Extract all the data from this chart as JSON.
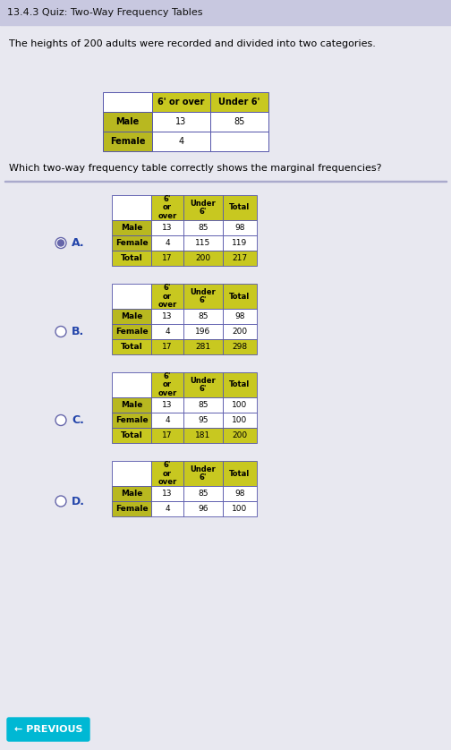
{
  "title": "13.4.3 Quiz: Two-Way Frequency Tables",
  "subtitle": "The heights of 200 adults were recorded and divided into two categories.",
  "question": "Which two-way frequency table correctly shows the marginal frequencies?",
  "title_bar_color": "#c8c8e0",
  "content_bg": "#d8d8e8",
  "white_area_color": "#e8e8f0",
  "cell_white": "#ffffff",
  "header_yellow": "#c8c820",
  "row_yellow": "#b8b820",
  "total_yellow": "#c8c820",
  "outline_color": "#5555aa",
  "intro_table": {
    "headers": [
      "6' or over",
      "Under 6'"
    ],
    "rows": [
      {
        "label": "Male",
        "vals": [
          "13",
          "85"
        ]
      },
      {
        "label": "Female",
        "vals": [
          "4",
          ""
        ]
      }
    ]
  },
  "options": [
    {
      "letter": "A.",
      "selected": true,
      "headers": [
        "6'\nor\nover",
        "Under\n6'",
        "Total"
      ],
      "rows": [
        {
          "label": "Male",
          "vals": [
            "13",
            "85",
            "98"
          ],
          "is_total": false
        },
        {
          "label": "Female",
          "vals": [
            "4",
            "115",
            "119"
          ],
          "is_total": false
        },
        {
          "label": "Total",
          "vals": [
            "17",
            "200",
            "217"
          ],
          "is_total": true
        }
      ]
    },
    {
      "letter": "B.",
      "selected": false,
      "headers": [
        "6'\nor\nover",
        "Under\n6'",
        "Total"
      ],
      "rows": [
        {
          "label": "Male",
          "vals": [
            "13",
            "85",
            "98"
          ],
          "is_total": false
        },
        {
          "label": "Female",
          "vals": [
            "4",
            "196",
            "200"
          ],
          "is_total": false
        },
        {
          "label": "Total",
          "vals": [
            "17",
            "281",
            "298"
          ],
          "is_total": true
        }
      ]
    },
    {
      "letter": "C.",
      "selected": false,
      "headers": [
        "6'\nor\nover",
        "Under\n6'",
        "Total"
      ],
      "rows": [
        {
          "label": "Male",
          "vals": [
            "13",
            "85",
            "100"
          ],
          "is_total": false
        },
        {
          "label": "Female",
          "vals": [
            "4",
            "95",
            "100"
          ],
          "is_total": false
        },
        {
          "label": "Total",
          "vals": [
            "17",
            "181",
            "200"
          ],
          "is_total": true
        }
      ]
    },
    {
      "letter": "D.",
      "selected": false,
      "headers": [
        "6'\nor\nover",
        "Under\n6'",
        "Total"
      ],
      "rows": [
        {
          "label": "Male",
          "vals": [
            "13",
            "85",
            "98"
          ],
          "is_total": false
        },
        {
          "label": "Female",
          "vals": [
            "4",
            "96",
            "100"
          ],
          "is_total": false
        }
      ]
    }
  ],
  "btn_color": "#00b8d4",
  "btn_text": "← PREVIOUS"
}
